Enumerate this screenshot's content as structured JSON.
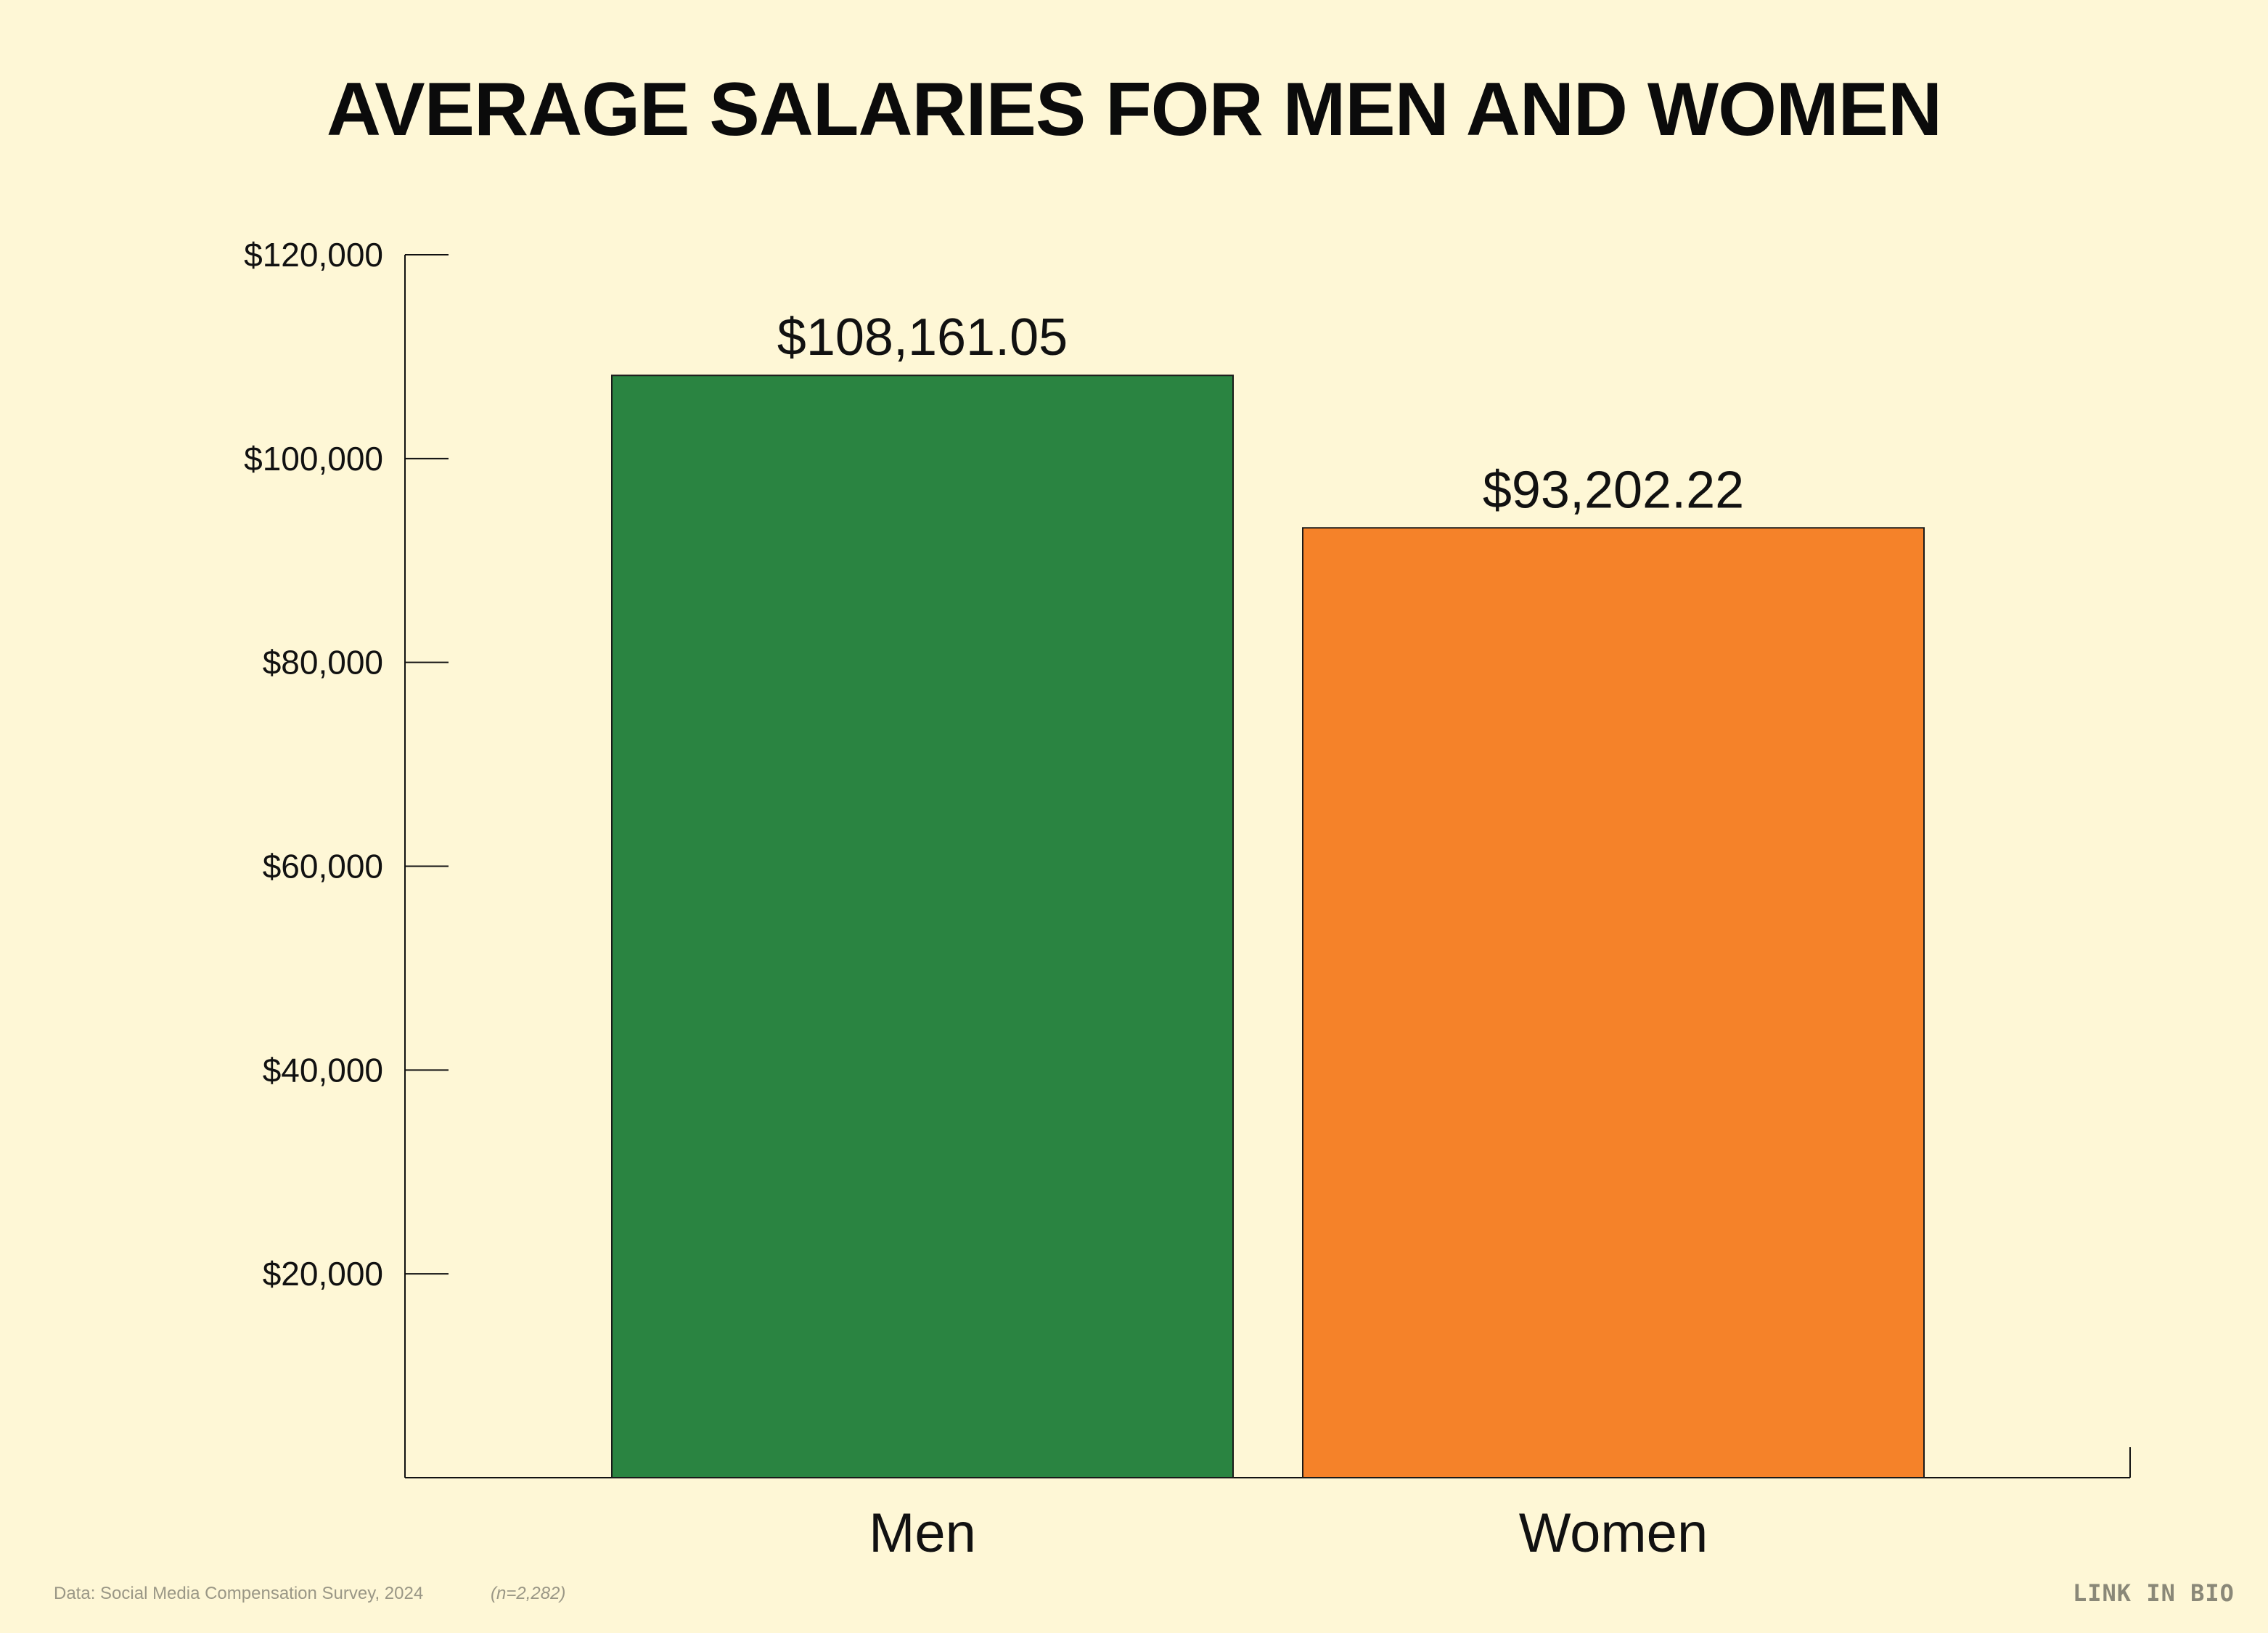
{
  "chart_data": {
    "type": "bar",
    "title": "AVERAGE SALARIES FOR MEN AND WOMEN",
    "xlabel": "",
    "ylabel": "",
    "categories": [
      "Men",
      "Women"
    ],
    "values": [
      108161.05,
      93202.22
    ],
    "value_labels": [
      "$108,161.05",
      "$93,202.22"
    ],
    "colors": [
      "#2A8441",
      "#F58229"
    ],
    "ylim": [
      0,
      120000
    ],
    "yticks": [
      20000,
      40000,
      60000,
      80000,
      100000,
      120000
    ],
    "ytick_labels": [
      "$20,000",
      "$40,000",
      "$60,000",
      "$80,000",
      "$100,000",
      "$120,000"
    ],
    "grid": false,
    "legend": "none"
  },
  "footer": {
    "source": "Data: Social Media Compensation Survey, 2024",
    "sample": "(n=2,282)",
    "logo": "LINK IN BIO"
  }
}
